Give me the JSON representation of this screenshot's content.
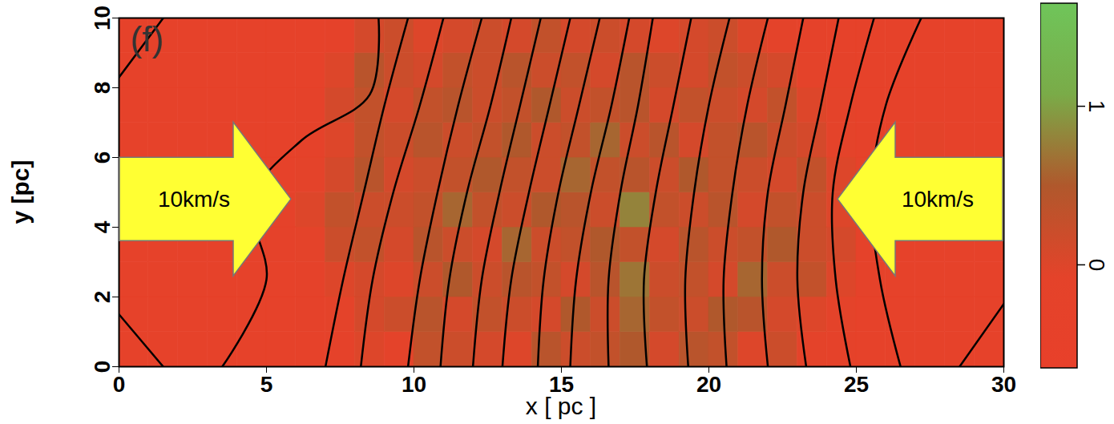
{
  "chart_data": {
    "type": "heatmap",
    "panel_label": "(f)",
    "x_label": "x [ pc ]",
    "y_label": "y [pc]",
    "xlim": [
      0,
      30
    ],
    "ylim": [
      0,
      10
    ],
    "xticks": [
      0,
      5,
      10,
      15,
      20,
      25,
      30
    ],
    "yticks": [
      0,
      2,
      4,
      6,
      8,
      10
    ],
    "cell_x_edges": [
      0,
      1,
      2,
      3,
      4,
      5,
      6,
      7,
      8,
      9,
      10,
      11,
      12,
      13,
      14,
      15,
      16,
      17,
      18,
      19,
      20,
      21,
      22,
      23,
      24,
      25,
      26,
      27,
      28,
      29,
      30
    ],
    "cell_y_edges": [
      0,
      1,
      2,
      3,
      4,
      5,
      6,
      7,
      8,
      9,
      10
    ],
    "cells": [
      [
        -0.3,
        -0.3,
        -0.3,
        -0.3,
        -0.3,
        -0.3,
        -0.3,
        -0.2,
        0.0,
        -0.1,
        0.3,
        0.2,
        0.1,
        0.0,
        0.4,
        0.2,
        0.3,
        0.5,
        0.1,
        0.4,
        0.3,
        0.0,
        0.2,
        -0.1,
        -0.2,
        -0.3,
        -0.3,
        -0.3,
        -0.3,
        -0.3
      ],
      [
        -0.3,
        -0.3,
        -0.3,
        -0.3,
        -0.3,
        -0.3,
        -0.2,
        -0.1,
        0.1,
        0.2,
        0.4,
        0.1,
        0.3,
        0.2,
        0.1,
        0.5,
        0.2,
        0.6,
        0.3,
        0.2,
        0.5,
        0.4,
        0.1,
        0.0,
        -0.1,
        -0.3,
        -0.3,
        -0.3,
        -0.3,
        -0.3
      ],
      [
        -0.3,
        -0.3,
        -0.3,
        -0.3,
        -0.3,
        -0.3,
        -0.2,
        0.0,
        0.1,
        0.0,
        0.2,
        0.5,
        0.2,
        0.4,
        0.3,
        0.1,
        0.4,
        0.7,
        0.2,
        0.3,
        0.1,
        0.6,
        0.2,
        0.3,
        0.0,
        -0.2,
        -0.3,
        -0.3,
        -0.3,
        -0.3
      ],
      [
        -0.3,
        -0.3,
        -0.3,
        -0.3,
        -0.3,
        -0.2,
        -0.1,
        0.2,
        0.3,
        0.1,
        0.4,
        0.2,
        0.1,
        0.6,
        0.2,
        0.3,
        0.5,
        0.3,
        0.1,
        0.4,
        0.2,
        0.3,
        0.5,
        0.2,
        0.1,
        -0.2,
        -0.3,
        -0.3,
        -0.3,
        -0.3
      ],
      [
        -0.3,
        -0.3,
        -0.3,
        -0.3,
        -0.3,
        -0.2,
        0.0,
        0.3,
        0.2,
        0.2,
        0.3,
        0.6,
        0.3,
        0.2,
        0.5,
        0.4,
        0.2,
        0.8,
        0.3,
        0.2,
        0.4,
        0.1,
        0.3,
        0.2,
        0.0,
        -0.2,
        -0.3,
        -0.2,
        -0.3,
        -0.3
      ],
      [
        -0.3,
        -0.3,
        -0.3,
        -0.3,
        -0.3,
        -0.3,
        -0.1,
        0.1,
        0.4,
        0.1,
        0.2,
        0.3,
        0.5,
        0.3,
        0.2,
        0.6,
        0.3,
        0.4,
        0.2,
        0.5,
        0.3,
        0.2,
        0.1,
        0.3,
        0.0,
        -0.2,
        -0.2,
        0.0,
        -0.2,
        -0.3
      ],
      [
        -0.3,
        -0.3,
        -0.3,
        -0.3,
        -0.3,
        -0.3,
        -0.2,
        0.0,
        0.3,
        0.2,
        0.4,
        0.2,
        0.3,
        0.5,
        0.2,
        0.3,
        0.6,
        0.2,
        0.4,
        0.1,
        0.3,
        0.4,
        0.2,
        0.1,
        -0.1,
        -0.2,
        -0.3,
        -0.1,
        -0.3,
        -0.3
      ],
      [
        -0.3,
        -0.3,
        -0.3,
        -0.3,
        -0.3,
        -0.3,
        -0.2,
        0.1,
        0.3,
        0.1,
        0.3,
        0.4,
        0.2,
        0.3,
        0.5,
        0.2,
        0.3,
        0.4,
        0.1,
        0.3,
        0.2,
        0.1,
        0.3,
        0.0,
        -0.1,
        -0.3,
        -0.3,
        -0.3,
        -0.3,
        -0.3
      ],
      [
        -0.3,
        -0.3,
        -0.3,
        -0.3,
        -0.3,
        -0.3,
        -0.3,
        0.0,
        0.4,
        0.2,
        0.1,
        0.3,
        0.2,
        0.4,
        0.2,
        0.3,
        0.1,
        0.4,
        0.2,
        0.1,
        0.3,
        0.2,
        0.1,
        -0.1,
        -0.2,
        -0.3,
        -0.3,
        -0.3,
        -0.3,
        -0.3
      ],
      [
        -0.3,
        -0.3,
        -0.3,
        -0.3,
        -0.3,
        -0.3,
        -0.3,
        -0.2,
        0.1,
        0.2,
        0.0,
        0.1,
        0.2,
        0.1,
        0.3,
        0.1,
        0.2,
        0.1,
        0.0,
        0.1,
        0.2,
        0.0,
        -0.1,
        -0.2,
        -0.3,
        -0.3,
        -0.3,
        -0.3,
        -0.3,
        -0.3
      ]
    ],
    "colorbar": {
      "range": [
        -0.65,
        1.65
      ],
      "ticks": [
        0,
        1
      ],
      "colors": [
        "#e8402a",
        "#e4432a",
        "#b0582c",
        "#7aab48",
        "#6fc55a"
      ]
    },
    "field_lines": [
      {
        "x": [
          7.0,
          7.6,
          8.3,
          9.0,
          9.8
        ],
        "y": [
          0,
          2.5,
          5,
          7.5,
          10
        ]
      },
      {
        "x": [
          8.2,
          8.6,
          9.3,
          10.2,
          11.0
        ],
        "y": [
          0,
          2.5,
          5,
          7.5,
          10
        ]
      },
      {
        "x": [
          9.8,
          10.2,
          10.8,
          11.5,
          12.3
        ],
        "y": [
          0,
          2.5,
          5,
          7.5,
          10
        ]
      },
      {
        "x": [
          10.9,
          11.2,
          11.8,
          12.6,
          13.3
        ],
        "y": [
          0,
          2.5,
          5,
          7.5,
          10
        ]
      },
      {
        "x": [
          12.0,
          12.3,
          12.9,
          13.6,
          14.3
        ],
        "y": [
          0,
          2.5,
          5,
          7.5,
          10
        ]
      },
      {
        "x": [
          13.0,
          13.3,
          13.9,
          14.6,
          15.3
        ],
        "y": [
          0,
          2.5,
          5,
          7.5,
          10
        ]
      },
      {
        "x": [
          14.2,
          14.4,
          14.9,
          15.6,
          16.3
        ],
        "y": [
          0,
          2.5,
          5,
          7.5,
          10
        ]
      },
      {
        "x": [
          15.3,
          15.5,
          16.0,
          16.7,
          17.3
        ],
        "y": [
          0,
          2.5,
          5,
          7.5,
          10
        ]
      },
      {
        "x": [
          16.6,
          16.6,
          17.0,
          17.6,
          18.1
        ],
        "y": [
          0,
          2.5,
          5,
          7.5,
          10
        ]
      },
      {
        "x": [
          17.9,
          17.8,
          18.2,
          18.8,
          19.4
        ],
        "y": [
          0,
          2.5,
          5,
          7.5,
          10
        ]
      },
      {
        "x": [
          19.3,
          19.2,
          19.5,
          20.0,
          20.7
        ],
        "y": [
          0,
          2.5,
          5,
          7.5,
          10
        ]
      },
      {
        "x": [
          20.6,
          20.5,
          20.8,
          21.3,
          22.0
        ],
        "y": [
          0,
          2.5,
          5,
          7.5,
          10
        ]
      },
      {
        "x": [
          22.0,
          21.8,
          22.0,
          22.6,
          23.2
        ],
        "y": [
          0,
          2.5,
          5,
          7.5,
          10
        ]
      },
      {
        "x": [
          23.3,
          23.0,
          23.2,
          23.8,
          24.4
        ],
        "y": [
          0,
          2.5,
          5,
          7.5,
          10
        ]
      },
      {
        "x": [
          24.8,
          24.3,
          24.2,
          24.8,
          25.6
        ],
        "y": [
          0,
          2.5,
          5,
          7.5,
          10
        ]
      },
      {
        "x": [
          26.5,
          25.8,
          25.5,
          26.0,
          27.2
        ],
        "y": [
          0,
          2.5,
          5,
          7.5,
          10
        ]
      },
      {
        "x": [
          3.5,
          5.0,
          4.5,
          6.2,
          8.5,
          8.8
        ],
        "y": [
          0,
          2.5,
          4.8,
          6.5,
          7.8,
          10
        ]
      },
      {
        "x": [
          0,
          1.5
        ],
        "y": [
          8.3,
          10
        ]
      },
      {
        "x": [
          0,
          1.5
        ],
        "y": [
          1.5,
          0
        ]
      },
      {
        "x": [
          28.5,
          30
        ],
        "y": [
          0,
          1.8
        ]
      }
    ],
    "annotations": [
      {
        "text": "10km/s",
        "direction": "right"
      },
      {
        "text": "10km/s",
        "direction": "left"
      }
    ]
  }
}
